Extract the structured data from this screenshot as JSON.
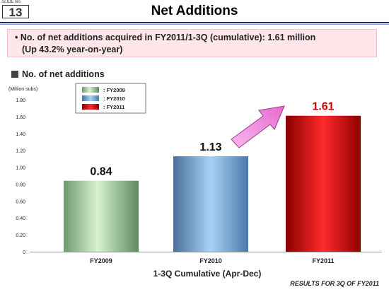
{
  "slide": {
    "label": "SLIDE No.",
    "number": "13"
  },
  "title": "Net Additions",
  "bullet": {
    "line1": "• No. of net additions acquired in FY2011/1-3Q (cumulative): 1.61 million",
    "line2": "(Up 43.2% year-on-year)"
  },
  "section_heading": "No. of net additions",
  "footer": "RESULTS FOR 3Q OF FY2011",
  "colors": {
    "fy2009": "#8fbf8f",
    "fy2010": "#7fb0e0",
    "fy2011": "#cc0000",
    "arrow": "#f08ad8",
    "title_rule": "#1f2a6b"
  },
  "chart_data": {
    "type": "bar",
    "categories": [
      "FY2009",
      "FY2010",
      "FY2011"
    ],
    "values": [
      0.84,
      1.13,
      1.61
    ],
    "value_labels": [
      "0.84",
      "1.13",
      "1.61"
    ],
    "legend": [
      ": FY2009",
      ": FY2010",
      ": FY2011"
    ],
    "ylabel": "(Million subs)",
    "xlabel": "1-3Q Cumulative (Apr-Dec)",
    "ylim": [
      0,
      1.8
    ],
    "yticks": [
      "0",
      "0.20",
      "0.40",
      "0.60",
      "0.80",
      "1.00",
      "1.20",
      "1.40",
      "1.60",
      "1.80"
    ],
    "legend_position": "top-left",
    "grid": false,
    "annotation": "arrow from FY2010 to FY2011"
  }
}
